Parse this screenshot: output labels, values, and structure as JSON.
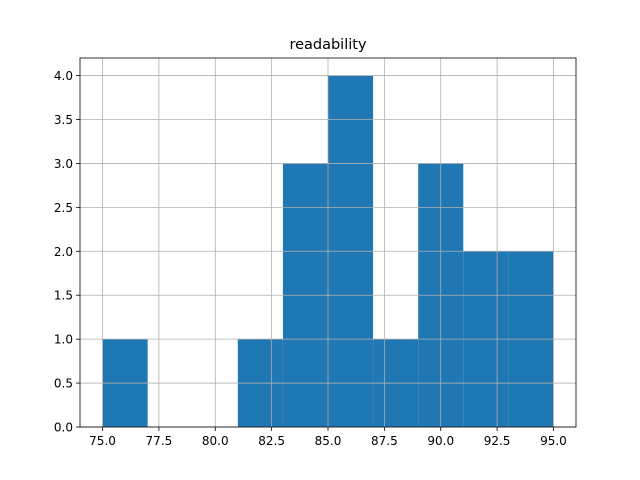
{
  "chart_data": {
    "type": "bar",
    "title": "readability",
    "xlabel": "",
    "ylabel": "",
    "grid": true,
    "bar_color": "#1f77b4",
    "grid_color": "#b0b0b0",
    "bins": [
      {
        "x0": 75,
        "x1": 77,
        "count": 1
      },
      {
        "x0": 77,
        "x1": 79,
        "count": 0
      },
      {
        "x0": 79,
        "x1": 81,
        "count": 0
      },
      {
        "x0": 81,
        "x1": 83,
        "count": 1
      },
      {
        "x0": 83,
        "x1": 85,
        "count": 3
      },
      {
        "x0": 85,
        "x1": 87,
        "count": 4
      },
      {
        "x0": 87,
        "x1": 89,
        "count": 1
      },
      {
        "x0": 89,
        "x1": 91,
        "count": 3
      },
      {
        "x0": 91,
        "x1": 93,
        "count": 2
      },
      {
        "x0": 93,
        "x1": 95,
        "count": 2
      }
    ],
    "xlim": [
      74,
      96
    ],
    "ylim": [
      0,
      4.2
    ],
    "x_ticks": [
      75.0,
      77.5,
      80.0,
      82.5,
      85.0,
      87.5,
      90.0,
      92.5,
      95.0
    ],
    "x_tick_labels": [
      "75.0",
      "77.5",
      "80.0",
      "82.5",
      "85.0",
      "87.5",
      "90.0",
      "92.5",
      "95.0"
    ],
    "y_ticks": [
      0.0,
      0.5,
      1.0,
      1.5,
      2.0,
      2.5,
      3.0,
      3.5,
      4.0
    ],
    "y_tick_labels": [
      "0.0",
      "0.5",
      "1.0",
      "1.5",
      "2.0",
      "2.5",
      "3.0",
      "3.5",
      "4.0"
    ]
  }
}
